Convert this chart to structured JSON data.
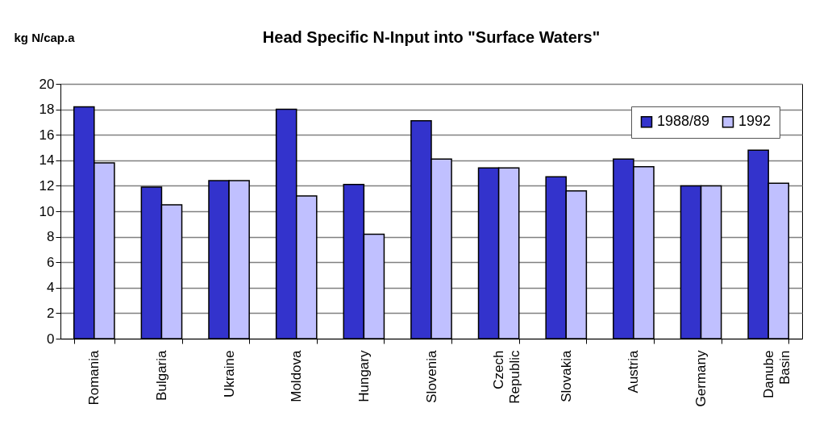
{
  "chart_data": {
    "type": "bar",
    "title": "Head Specific N-Input into \"Surface Waters\"",
    "ylabel": "kg N/cap.a",
    "categories": [
      "Romania",
      "Bulgaria",
      "Ukraine",
      "Moldova",
      "Hungary",
      "Slovenia",
      "Czech Republic",
      "Slovakia",
      "Austria",
      "Germany",
      "Danube Basin"
    ],
    "series": [
      {
        "name": "1988/89",
        "color": "#3333cc",
        "values": [
          18.2,
          11.9,
          12.4,
          18.0,
          12.1,
          17.1,
          13.4,
          12.7,
          14.1,
          12.0,
          14.8
        ]
      },
      {
        "name": "1992",
        "color": "#c0c0ff",
        "values": [
          13.8,
          10.5,
          12.4,
          11.2,
          8.2,
          14.1,
          13.4,
          11.6,
          13.5,
          12.0,
          12.2
        ]
      }
    ],
    "ylim": [
      0,
      20
    ],
    "yticks": [
      0,
      2,
      4,
      6,
      8,
      10,
      12,
      14,
      16,
      18,
      20
    ],
    "grid": "y",
    "legend": "top right"
  }
}
